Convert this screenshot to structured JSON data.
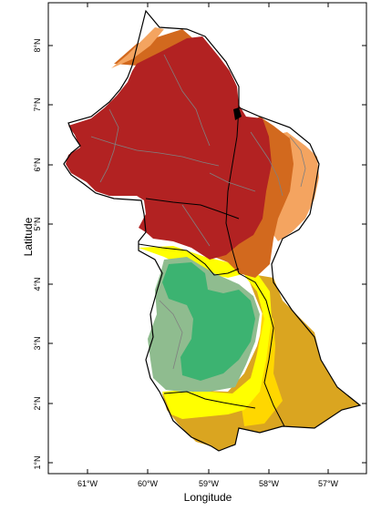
{
  "axes": {
    "xlabel": "Longitude",
    "ylabel": "Latitude",
    "x_ticks": [
      "61°W",
      "60°W",
      "59°W",
      "58°W",
      "57°W"
    ],
    "y_ticks": [
      "1°N",
      "2°N",
      "3°N",
      "4°N",
      "5°N",
      "6°N",
      "7°N",
      "8°N"
    ]
  },
  "colors": {
    "dark_red": "#b22222",
    "dark_orange": "#d2691e",
    "light_orange": "#f4a460",
    "yellow": "#ffff00",
    "gold": "#ffd700",
    "tan": "#daa520",
    "green": "#3cb371",
    "sage": "#8fbc8f",
    "boundary": "#000000",
    "subboundary": "#808080"
  }
}
